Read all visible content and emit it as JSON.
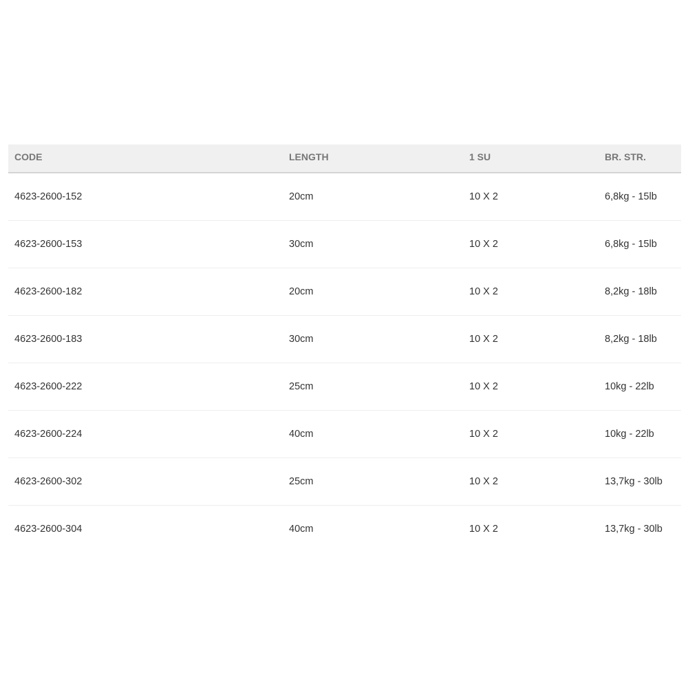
{
  "table": {
    "headers": [
      "CODE",
      "LENGTH",
      "1 SU",
      "BR. STR."
    ],
    "rows": [
      [
        "4623-2600-152",
        "20cm",
        "10 X 2",
        "6,8kg - 15lb"
      ],
      [
        "4623-2600-153",
        "30cm",
        "10 X 2",
        "6,8kg - 15lb"
      ],
      [
        "4623-2600-182",
        "20cm",
        "10 X 2",
        "8,2kg - 18lb"
      ],
      [
        "4623-2600-183",
        "30cm",
        "10 X 2",
        "8,2kg - 18lb"
      ],
      [
        "4623-2600-222",
        "25cm",
        "10 X 2",
        "10kg - 22lb"
      ],
      [
        "4623-2600-224",
        "40cm",
        "10 X 2",
        "10kg - 22lb"
      ],
      [
        "4623-2600-302",
        "25cm",
        "10 X 2",
        "13,7kg - 30lb"
      ],
      [
        "4623-2600-304",
        "40cm",
        "10 X 2",
        "13,7kg - 30lb"
      ]
    ]
  }
}
